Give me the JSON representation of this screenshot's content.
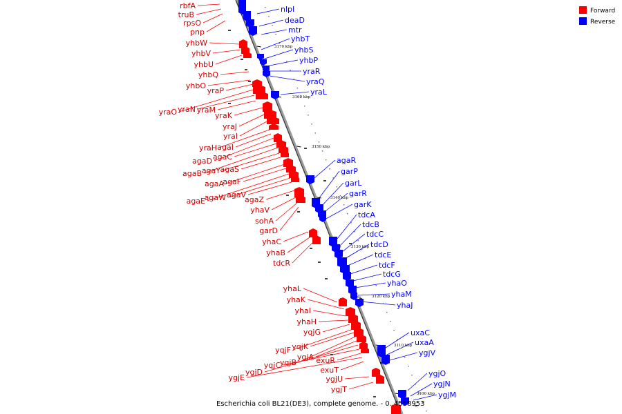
{
  "caption": "Escherichia coli BL21(DE3), complete genome. - 0..4558953",
  "legend": [
    {
      "label": "Forward",
      "color": "#ff0000"
    },
    {
      "label": "Reverse",
      "color": "#0000ff"
    }
  ],
  "ticks": [
    "3170 kbp",
    "3160 kbp",
    "3150 kbp",
    "3140 kbp",
    "3130 kbp",
    "3120 kbp",
    "3110 kbp",
    "3100 kbp"
  ],
  "reverse_genes": [
    "nlpI",
    "deaD",
    "mtr",
    "yhbT",
    "yhbS",
    "yhbP",
    "yraR",
    "yraQ",
    "yraL",
    "agaR",
    "garP",
    "garL",
    "garR",
    "garK",
    "tdcA",
    "tdcB",
    "tdcC",
    "tdcD",
    "tdcE",
    "tdcF",
    "tdcG",
    "yhaO",
    "yhaM",
    "yhaJ",
    "uxaC",
    "uxaA",
    "ygjV",
    "ygjO",
    "ygjN",
    "ygjM"
  ],
  "forward_genes": [
    "rbfA",
    "truB",
    "rpsO",
    "pnp",
    "yhbW",
    "yhbV",
    "yhbU",
    "yhbQ",
    "yhbO",
    "yraP",
    "yraO",
    "yraN",
    "yraM",
    "yraK",
    "yraJ",
    "yraI",
    "yraH",
    "agaI",
    "agaD",
    "agaC",
    "agaB",
    "agaY",
    "agaS",
    "agaA",
    "agaF",
    "agaE",
    "agaW",
    "agaV",
    "agaZ",
    "yhaV",
    "sohA",
    "garD",
    "yhaC",
    "yhaB",
    "tdcR",
    "yhaL",
    "yhaK",
    "yhaI",
    "yhaH",
    "yqjG",
    "yqjF",
    "yqjK",
    "yqjB",
    "yqjA",
    "ygjD",
    "yqjC",
    "exuR",
    "ygjE",
    "exuT",
    "ygjU",
    "ygjT"
  ]
}
